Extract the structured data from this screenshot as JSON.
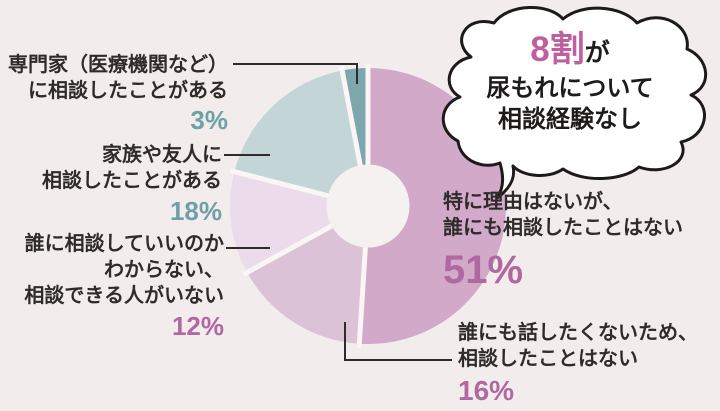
{
  "background_color": "#f2edec",
  "text_color": "#2f2b2a",
  "accent_teal": "#6fa0a8",
  "accent_mauve": "#b068a1",
  "bubble": {
    "emphasis": "8割",
    "emphasis_color": "#c05f9e",
    "suffix": "が",
    "line2": "尿もれについて",
    "line3": "相談経験なし"
  },
  "labels": {
    "no_reason": {
      "line1": "特に理由はないが、",
      "line2": "誰にも相談したことはない",
      "pct": "51%",
      "pct_color": "#b068a1"
    },
    "no_talk": {
      "line1": "誰にも話したくないため、",
      "line2": "相談したことはない",
      "pct": "16%",
      "pct_color": "#b068a1"
    },
    "unknown": {
      "line1": "誰に相談していいのか",
      "line2": "わからない、",
      "line3": "相談できる人がいない",
      "pct": "12%",
      "pct_color": "#b068a1"
    },
    "family": {
      "line1": "家族や友人に",
      "line2": "相談したことがある",
      "pct": "18%",
      "pct_color": "#6fa0a8"
    },
    "expert": {
      "line1": "専門家（医療機関など）",
      "line2": "に相談したことがある",
      "pct": "3%",
      "pct_color": "#6fa0a8"
    }
  },
  "chart_data": {
    "type": "pie",
    "subtype": "donut",
    "annotation": "8割が尿もれについて相談経験なし",
    "clockwise_from_top": true,
    "donut_hole_color": "#f5f1f0",
    "gap_color": "#f9f6f5",
    "segments": [
      {
        "label": "特に理由はないが、誰にも相談したことはない",
        "value": 51,
        "color": "#d2a9c9"
      },
      {
        "label": "誰にも話したくないため、相談したことはない",
        "value": 16,
        "color": "#dcc2d6"
      },
      {
        "label": "誰に相談していいのかわからない、相談できる人がいない",
        "value": 12,
        "color": "#ecdbea"
      },
      {
        "label": "家族や友人に相談したことがある",
        "value": 18,
        "color": "#c3d5d6"
      },
      {
        "label": "専門家（医療機関など）に相談したことがある",
        "value": 3,
        "color": "#7ea7ad"
      }
    ]
  }
}
